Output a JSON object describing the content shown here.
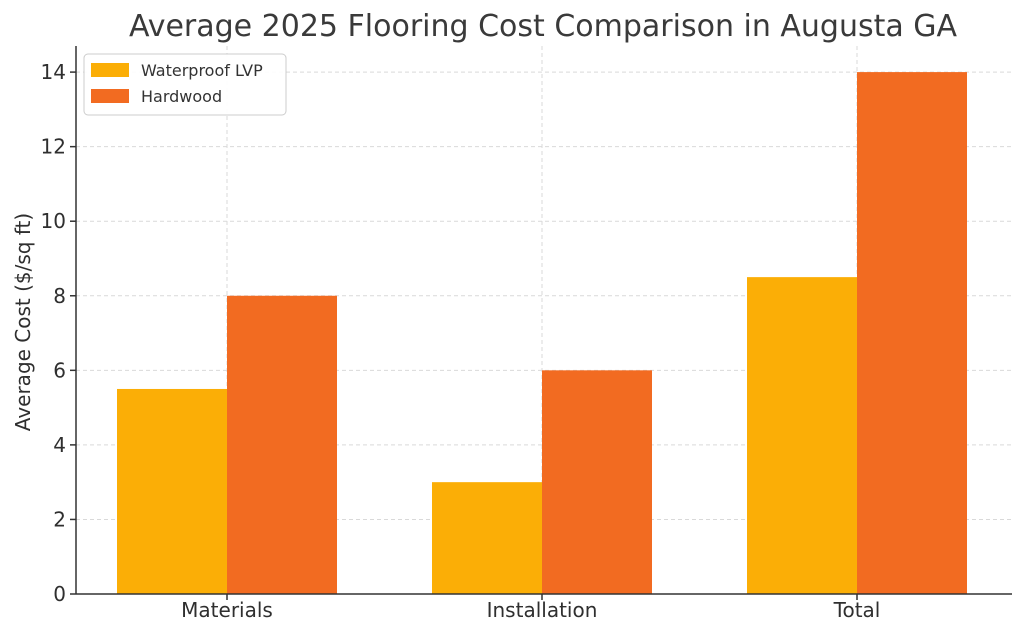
{
  "chart_data": {
    "type": "bar",
    "title": "Average 2025 Flooring Cost Comparison in Augusta GA",
    "xlabel": "",
    "ylabel": "Average Cost ($/sq ft)",
    "categories": [
      "Materials",
      "Installation",
      "Total"
    ],
    "series": [
      {
        "name": "Waterproof LVP",
        "values": [
          5.5,
          3,
          8.5
        ],
        "color": "#FBAE06"
      },
      {
        "name": "Hardwood",
        "values": [
          8,
          6,
          14
        ],
        "color": "#F26B21"
      }
    ],
    "ylim": [
      0,
      14.7
    ],
    "yticks": [
      0,
      2,
      4,
      6,
      8,
      10,
      12,
      14
    ],
    "grid": true,
    "legend_position": "top-left"
  }
}
